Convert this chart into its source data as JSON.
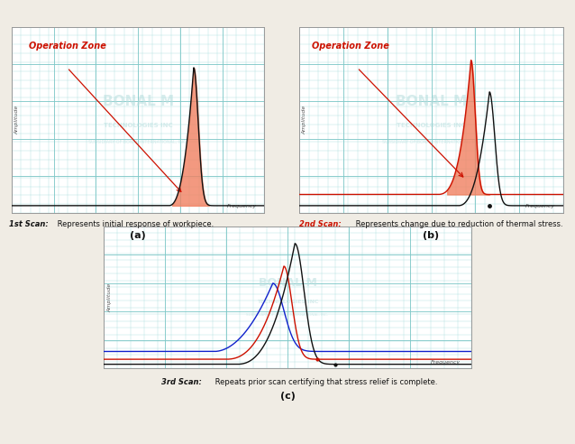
{
  "bg_color": "#f0ece4",
  "panel_bg": "#ffffff",
  "grid_minor_color": "#a8dede",
  "grid_major_color": "#7ec8c8",
  "curve_black": "#111111",
  "curve_red": "#cc1100",
  "curve_blue": "#1122cc",
  "fill_color": "#f08060",
  "op_zone_color": "#cc1100",
  "op_zone_label": "Operation Zone",
  "xlabel": "Frequency",
  "ylabel": "Amplitude",
  "scan1_bold": "1st Scan:",
  "scan1_rest": " Represents initial response of workpiece.",
  "scan2_bold": "2nd Scan:",
  "scan2_rest": " Represents change due to reduction of thermal stress.",
  "scan3_bold": "3rd Scan:",
  "scan3_rest": " Repeats prior scan certifying that stress relief is complete.",
  "label_a": "(a)",
  "label_b": "(b)",
  "label_c": "(c)"
}
